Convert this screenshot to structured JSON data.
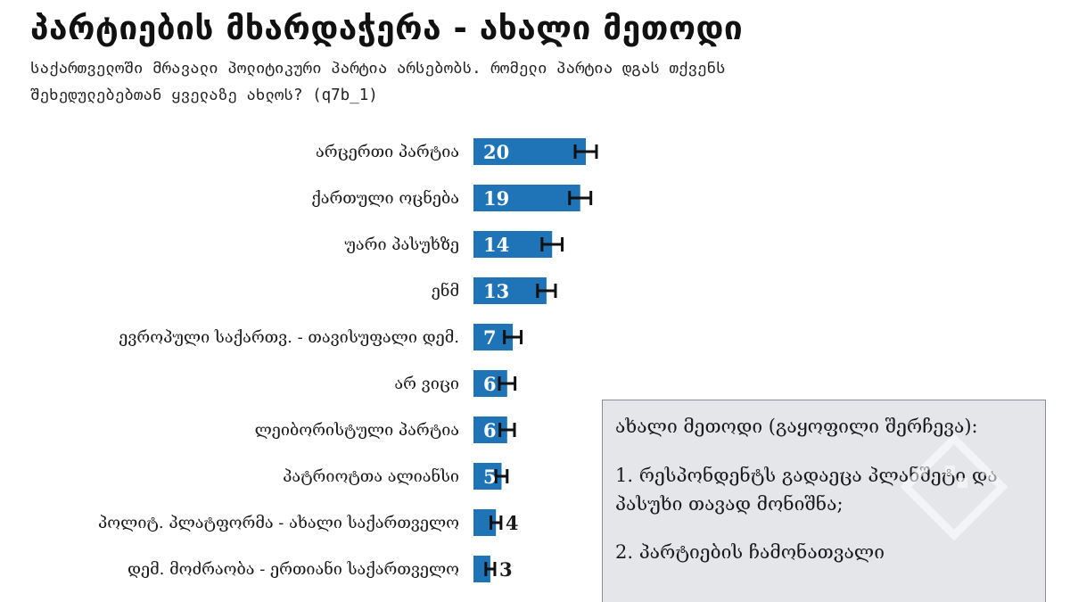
{
  "header": {
    "title": "პარტიების მხარდაჭერა - ახალი მეთოდი",
    "subtitle": "საქართველოში მრავალი პოლიტიკური პარტია არსებობს. რომელი პარტია დგას თქვენს შეხედულებებთან ყველაზე ახლოს? (q7b_1)"
  },
  "chart_data": {
    "type": "bar",
    "orientation": "horizontal",
    "title": "პარტიების მხარდაჭერა - ახალი მეთოდი",
    "subtitle": "საქართველოში მრავალი პოლიტიკური პარტია არსებობს. რომელი პარტია დგას თქვენს შეხედულებებთან ყველაზე ახლოს? (q7b_1)",
    "categories": [
      "არცერთი პარტია",
      "ქართული ოცნება",
      "უარი პასუხზე",
      "ენმ",
      "ევროპული საქართვ. - თავისუფალი დემ.",
      "არ ვიცი",
      "ლეიბორისტული პარტია",
      "პატრიოტთა ალიანსი",
      "პოლიტ. პლატფორმა - ახალი საქართველო",
      "დემ. მოძრაობა - ერთიანი საქართველო"
    ],
    "values": [
      20,
      19,
      14,
      13,
      7,
      6,
      6,
      5,
      4,
      3
    ],
    "error_margins": [
      1.9,
      1.9,
      1.8,
      1.6,
      1.5,
      1.4,
      1.3,
      1.0,
      0.9,
      0.8
    ],
    "xlim": [
      0,
      100
    ],
    "bar_color": "#1f73b7",
    "error_bar_color": "#111111",
    "grid": false,
    "legend": "none"
  },
  "note": {
    "title": "ახალი მეთოდი (გაყოფილი შერჩევა):",
    "items": [
      "1. რესპონდენტს გადაეცა პლანშეტი და პასუხი თავად მონიშნა;",
      "2. პარტიების ჩამონათვალი"
    ]
  }
}
